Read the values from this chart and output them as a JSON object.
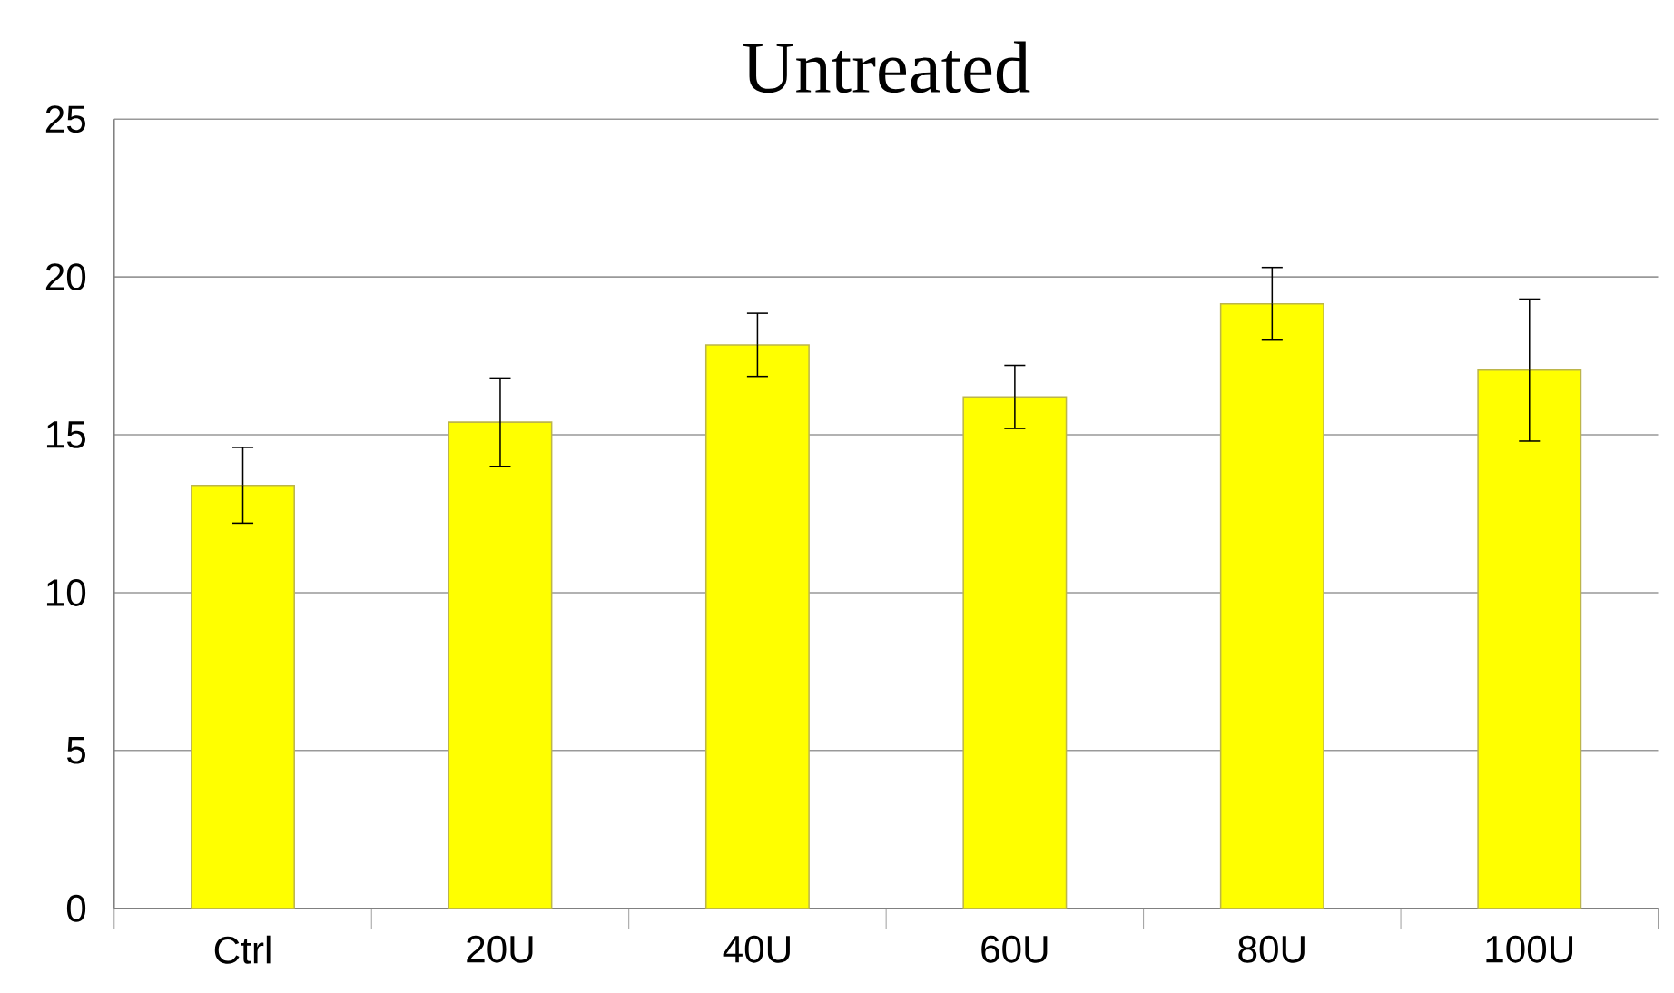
{
  "chart_data": {
    "type": "bar",
    "title": "Untreated",
    "categories": [
      "Ctrl",
      "20U",
      "40U",
      "60U",
      "80U",
      "100U"
    ],
    "values": [
      13.4,
      15.4,
      17.85,
      16.2,
      19.15,
      17.05
    ],
    "errors": [
      1.2,
      1.4,
      1.0,
      1.0,
      1.15,
      2.25
    ],
    "color": "#ffff00",
    "ylim": [
      0,
      25
    ],
    "yticks": [
      0,
      5,
      10,
      15,
      20,
      25
    ],
    "grid": "y"
  }
}
